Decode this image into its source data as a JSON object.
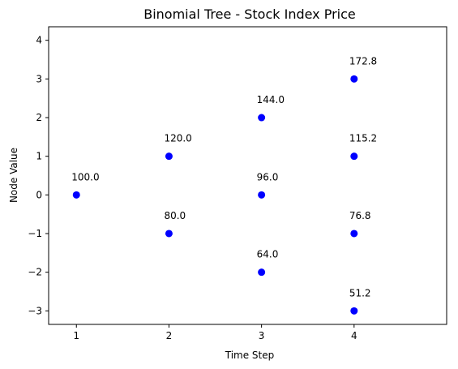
{
  "chart_data": {
    "type": "scatter",
    "title": "Binomial Tree - Stock Index Price",
    "xlabel": "Time Step",
    "ylabel": "Node Value",
    "xlim": [
      0.7,
      5.0
    ],
    "ylim": [
      -3.35,
      4.35
    ],
    "x_ticks": [
      1,
      2,
      3,
      4
    ],
    "y_ticks": [
      -3,
      -2,
      -1,
      0,
      1,
      2,
      3,
      4
    ],
    "y_tick_labels": [
      "−3",
      "−2",
      "−1",
      "0",
      "1",
      "2",
      "3",
      "4"
    ],
    "grid": false,
    "marker_color": "#0000ff",
    "points": [
      {
        "x": 1,
        "y": 0,
        "label": "100.0"
      },
      {
        "x": 2,
        "y": 1,
        "label": "120.0"
      },
      {
        "x": 2,
        "y": -1,
        "label": "80.0"
      },
      {
        "x": 3,
        "y": 2,
        "label": "144.0"
      },
      {
        "x": 3,
        "y": 0,
        "label": "96.0"
      },
      {
        "x": 3,
        "y": -2,
        "label": "64.0"
      },
      {
        "x": 4,
        "y": 3,
        "label": "172.8"
      },
      {
        "x": 4,
        "y": 1,
        "label": "115.2"
      },
      {
        "x": 4,
        "y": -1,
        "label": "76.8"
      },
      {
        "x": 4,
        "y": -3,
        "label": "51.2"
      }
    ]
  }
}
